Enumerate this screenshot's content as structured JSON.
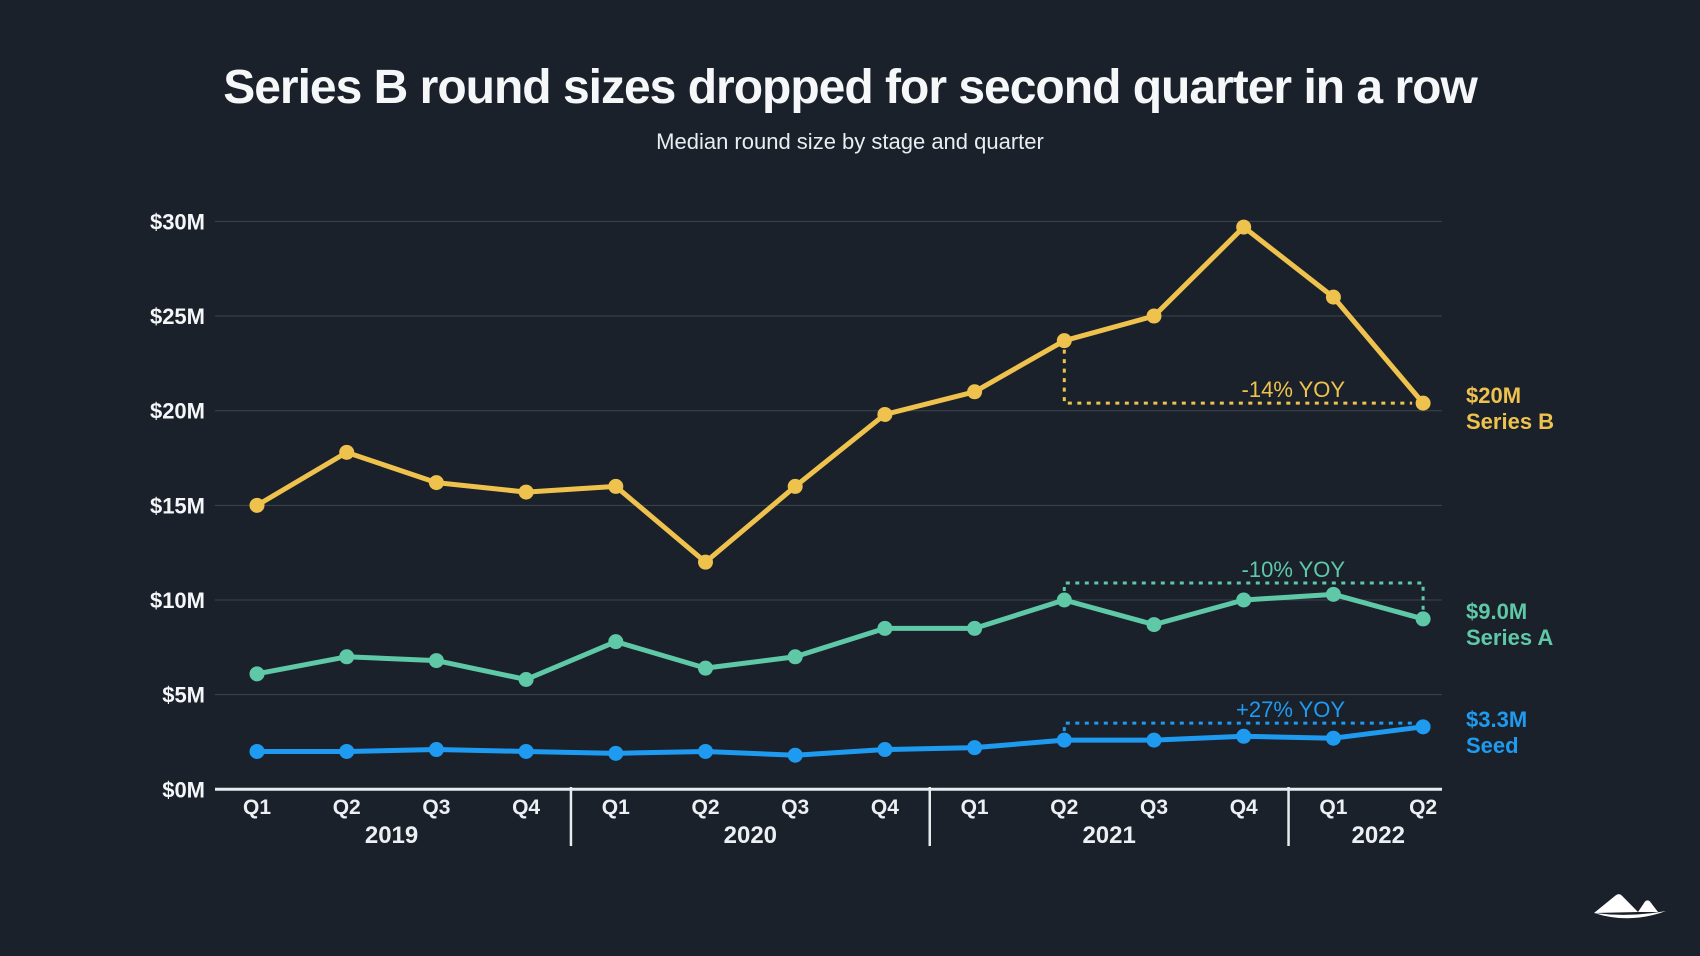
{
  "title": "Series B round sizes dropped for second quarter in a row",
  "subtitle": "Median round size by stage and quarter",
  "colors": {
    "background": "#1A212B",
    "grid": "#3D444D",
    "axis": "#E8EBEE",
    "text": "#F4F6F8",
    "series_b": "#EEC24D",
    "series_a": "#5FC8A7",
    "seed": "#1E9BF0"
  },
  "chart_data": {
    "type": "line",
    "title": "Series B round sizes dropped for second quarter in a row",
    "subtitle": "Median round size by stage and quarter",
    "grid": true,
    "legend_position": "right-end-labels",
    "quarters": [
      "Q1",
      "Q2",
      "Q3",
      "Q4",
      "Q1",
      "Q2",
      "Q3",
      "Q4",
      "Q1",
      "Q2",
      "Q3",
      "Q4",
      "Q1",
      "Q2"
    ],
    "year_groups": [
      {
        "label": "2019",
        "count": 4
      },
      {
        "label": "2020",
        "count": 4
      },
      {
        "label": "2021",
        "count": 4
      },
      {
        "label": "2022",
        "count": 2
      }
    ],
    "y_axis": {
      "min": 0,
      "max": 30,
      "step": 5,
      "unit": "$M",
      "tick_labels": [
        "$0M",
        "$5M",
        "$10M",
        "$15M",
        "$20M",
        "$25M",
        "$30M"
      ]
    },
    "series": [
      {
        "name": "Series B",
        "color": "#EEC24D",
        "values": [
          15.0,
          17.8,
          16.2,
          15.7,
          16.0,
          12.0,
          16.0,
          19.8,
          21.0,
          23.7,
          25.0,
          29.7,
          26.0,
          20.4
        ],
        "end_label_value": "$20M",
        "end_label_name": "Series B"
      },
      {
        "name": "Series A",
        "color": "#5FC8A7",
        "values": [
          6.1,
          7.0,
          6.8,
          5.8,
          7.8,
          6.4,
          7.0,
          8.5,
          8.5,
          10.0,
          8.7,
          10.0,
          10.3,
          9.0
        ],
        "end_label_value": "$9.0M",
        "end_label_name": "Series A"
      },
      {
        "name": "Seed",
        "color": "#1E9BF0",
        "values": [
          2.0,
          2.0,
          2.1,
          2.0,
          1.9,
          2.0,
          1.8,
          2.1,
          2.2,
          2.6,
          2.6,
          2.8,
          2.7,
          3.3
        ],
        "end_label_value": "$3.3M",
        "end_label_name": "Seed"
      }
    ],
    "annotations": [
      {
        "series": "Series B",
        "label": "-14% YOY",
        "from_index": 9,
        "to_index": 13,
        "shape": "drop-then-right"
      },
      {
        "series": "Series A",
        "label": "-10% YOY",
        "from_index": 9,
        "to_index": 13,
        "shape": "rise-right-drop"
      },
      {
        "series": "Seed",
        "label": "+27% YOY",
        "from_index": 9,
        "to_index": 13,
        "shape": "rise-then-right"
      }
    ]
  }
}
